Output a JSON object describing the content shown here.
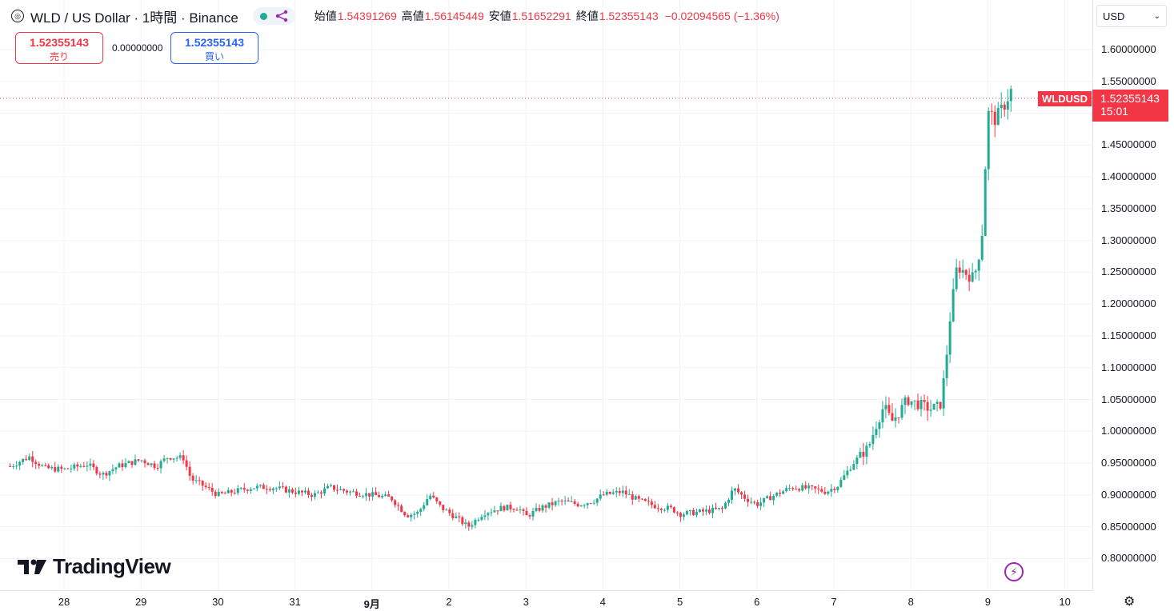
{
  "header": {
    "symbol_icon": "symbol-logo-icon",
    "title": "WLD / US Dollar · 1時間 · Binance",
    "ohlc": [
      {
        "label": "始値",
        "value": "1.54391269"
      },
      {
        "label": "高値",
        "value": "1.56145449"
      },
      {
        "label": "安値",
        "value": "1.51652291"
      },
      {
        "label": "終値",
        "value": "1.52355143"
      }
    ],
    "change": "−0.02094565 (−1.36%)"
  },
  "trade": {
    "sell_price": "1.52355143",
    "sell_label": "売り",
    "spread": "0.00000000",
    "buy_price": "1.52355143",
    "buy_label": "買い"
  },
  "currency": {
    "value": "USD"
  },
  "last_price": {
    "symbol": "WLDUSD",
    "price": "1.52355143",
    "countdown": "15:01"
  },
  "brand": {
    "logo_text": "TradingView"
  },
  "colors": {
    "up": "#22ab94",
    "down": "#f23645",
    "grid": "#f2f3f5"
  },
  "chart_data": {
    "type": "candlestick",
    "interval": "1時間",
    "ylim": [
      0.78,
      1.625
    ],
    "y_ticks": [
      "1.60000000",
      "1.55000000",
      "1.50000000",
      "1.45000000",
      "1.40000000",
      "1.35000000",
      "1.30000000",
      "1.25000000",
      "1.20000000",
      "1.15000000",
      "1.10000000",
      "1.05000000",
      "1.00000000",
      "0.95000000",
      "0.90000000",
      "0.85000000",
      "0.80000000"
    ],
    "x_ticks": [
      {
        "label": "28",
        "day": 0
      },
      {
        "label": "29",
        "day": 1
      },
      {
        "label": "30",
        "day": 2
      },
      {
        "label": "31",
        "day": 3
      },
      {
        "label": "9月",
        "day": 4,
        "bold": true
      },
      {
        "label": "2",
        "day": 5
      },
      {
        "label": "3",
        "day": 6
      },
      {
        "label": "4",
        "day": 7
      },
      {
        "label": "5",
        "day": 8
      },
      {
        "label": "6",
        "day": 9
      },
      {
        "label": "7",
        "day": 10
      },
      {
        "label": "8",
        "day": 11
      },
      {
        "label": "9",
        "day": 12
      },
      {
        "label": "10",
        "day": 13
      }
    ],
    "close_path": [
      [
        -0.7,
        0.945
      ],
      [
        -0.45,
        0.96
      ],
      [
        -0.25,
        0.942
      ],
      [
        0.0,
        0.94
      ],
      [
        0.3,
        0.948
      ],
      [
        0.5,
        0.932
      ],
      [
        0.7,
        0.945
      ],
      [
        0.9,
        0.952
      ],
      [
        1.0,
        0.955
      ],
      [
        1.2,
        0.945
      ],
      [
        1.35,
        0.96
      ],
      [
        1.55,
        0.958
      ],
      [
        1.65,
        0.925
      ],
      [
        1.8,
        0.915
      ],
      [
        2.0,
        0.9
      ],
      [
        2.2,
        0.905
      ],
      [
        2.45,
        0.912
      ],
      [
        2.7,
        0.912
      ],
      [
        3.0,
        0.905
      ],
      [
        3.25,
        0.9
      ],
      [
        3.45,
        0.912
      ],
      [
        3.7,
        0.905
      ],
      [
        4.0,
        0.9
      ],
      [
        4.25,
        0.895
      ],
      [
        4.45,
        0.868
      ],
      [
        4.6,
        0.872
      ],
      [
        4.75,
        0.9
      ],
      [
        4.9,
        0.88
      ],
      [
        5.05,
        0.868
      ],
      [
        5.25,
        0.85
      ],
      [
        5.45,
        0.872
      ],
      [
        5.7,
        0.88
      ],
      [
        5.9,
        0.88
      ],
      [
        6.0,
        0.866
      ],
      [
        6.2,
        0.88
      ],
      [
        6.45,
        0.89
      ],
      [
        6.7,
        0.885
      ],
      [
        6.9,
        0.892
      ],
      [
        7.0,
        0.9
      ],
      [
        7.25,
        0.905
      ],
      [
        7.45,
        0.892
      ],
      [
        7.7,
        0.882
      ],
      [
        7.9,
        0.878
      ],
      [
        8.0,
        0.87
      ],
      [
        8.25,
        0.873
      ],
      [
        8.55,
        0.878
      ],
      [
        8.7,
        0.91
      ],
      [
        8.85,
        0.895
      ],
      [
        9.0,
        0.885
      ],
      [
        9.2,
        0.898
      ],
      [
        9.45,
        0.912
      ],
      [
        9.7,
        0.91
      ],
      [
        9.9,
        0.905
      ],
      [
        10.05,
        0.915
      ],
      [
        10.25,
        0.95
      ],
      [
        10.45,
        0.975
      ],
      [
        10.55,
        1.01
      ],
      [
        10.65,
        1.04
      ],
      [
        10.75,
        1.015
      ],
      [
        10.85,
        1.03
      ],
      [
        10.95,
        1.05
      ],
      [
        11.05,
        1.045
      ],
      [
        11.25,
        1.035
      ],
      [
        11.38,
        1.04
      ],
      [
        11.45,
        1.1
      ],
      [
        11.5,
        1.17
      ],
      [
        11.6,
        1.26
      ],
      [
        11.7,
        1.25
      ],
      [
        11.82,
        1.24
      ],
      [
        11.92,
        1.3
      ],
      [
        12.0,
        1.5
      ],
      [
        12.1,
        1.49
      ],
      [
        12.2,
        1.51
      ],
      [
        12.3,
        1.535
      ],
      [
        12.32,
        1.5236
      ]
    ]
  }
}
